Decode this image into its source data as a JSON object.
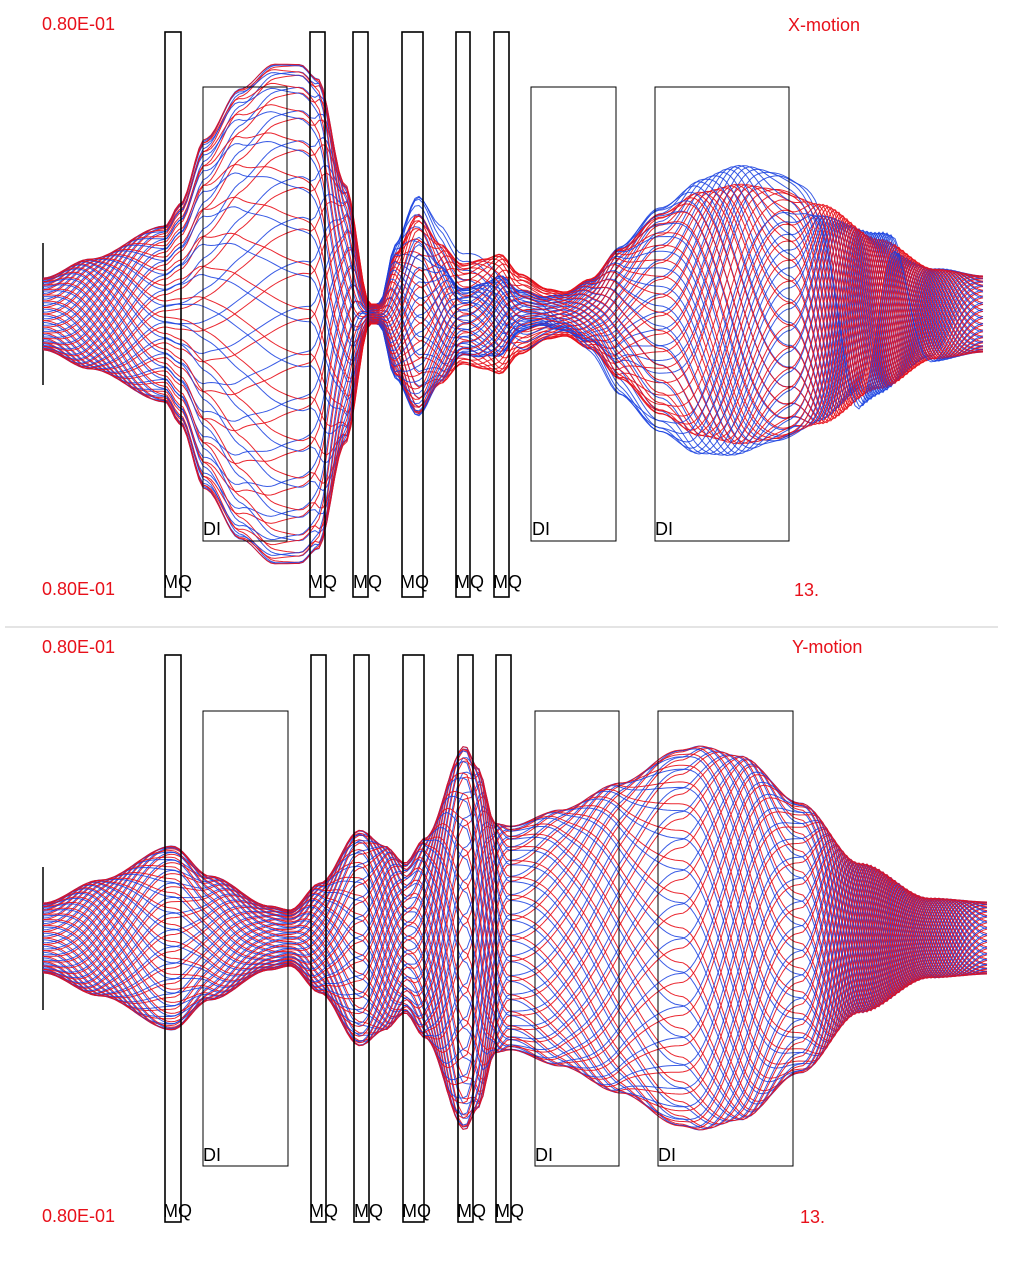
{
  "colors": {
    "trace_primary": "#e8101a",
    "trace_secondary": "#1840e0",
    "element_outline": "#000000",
    "divider": "#c8c8c8",
    "label_red": "#e8101a"
  },
  "panels": [
    {
      "id": "x",
      "title": "X-motion",
      "scale_top": "0.80E-01",
      "scale_bottom": "0.80E-01",
      "length_label": "13.",
      "elements": [
        {
          "type": "MQ",
          "label": "MQ"
        },
        {
          "type": "DI",
          "label": "DI"
        },
        {
          "type": "MQ",
          "label": "MQ"
        },
        {
          "type": "MQ",
          "label": "MQ"
        },
        {
          "type": "MQ",
          "label": "MQ"
        },
        {
          "type": "MQ",
          "label": "MQ"
        },
        {
          "type": "MQ",
          "label": "MQ"
        },
        {
          "type": "DI",
          "label": "DI"
        },
        {
          "type": "DI",
          "label": "DI"
        }
      ]
    },
    {
      "id": "y",
      "title": "Y-motion",
      "scale_top": "0.80E-01",
      "scale_bottom": "0.80E-01",
      "length_label": "13.",
      "elements": [
        {
          "type": "MQ",
          "label": "MQ"
        },
        {
          "type": "DI",
          "label": "DI"
        },
        {
          "type": "MQ",
          "label": "MQ"
        },
        {
          "type": "MQ",
          "label": "MQ"
        },
        {
          "type": "MQ",
          "label": "MQ"
        },
        {
          "type": "MQ",
          "label": "MQ"
        },
        {
          "type": "MQ",
          "label": "MQ"
        },
        {
          "type": "DI",
          "label": "DI"
        },
        {
          "type": "DI",
          "label": "DI"
        }
      ]
    }
  ]
}
